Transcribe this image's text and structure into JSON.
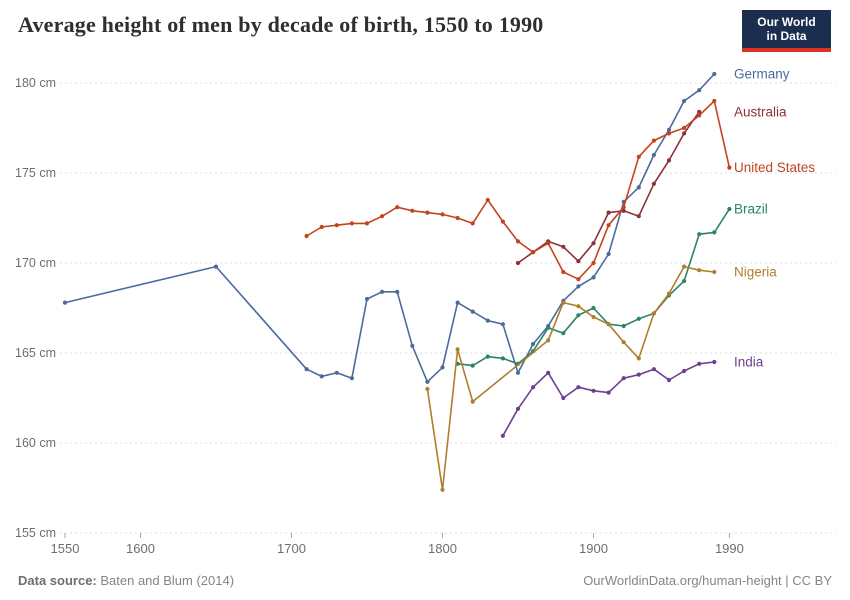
{
  "header": {
    "title": "Average height of men by decade of birth, 1550 to 1990"
  },
  "logo": {
    "line1": "Our World",
    "line2": "in Data",
    "bg_color": "#1b2e4f",
    "stripe_color": "#dc3122"
  },
  "footer": {
    "source_label": "Data source:",
    "source_text": " Baten and Blum (2014)",
    "link": "OurWorldinData.org/human-height | CC BY"
  },
  "chart_data": {
    "type": "line",
    "title": "Average height of men by decade of birth, 1550 to 1990",
    "xlabel": "",
    "ylabel": "cm",
    "x_ticks": [
      1550,
      1600,
      1700,
      1800,
      1900,
      1990
    ],
    "y_ticks": [
      155,
      160,
      165,
      170,
      175,
      180
    ],
    "y_tick_suffix": " cm",
    "xlim": [
      1550,
      1990
    ],
    "ylim": [
      155,
      181
    ],
    "grid": "dashed horizontal",
    "legend_position": "right-of-line-ends",
    "series": [
      {
        "name": "Germany",
        "color": "#4C6A9C",
        "points": [
          [
            1550,
            167.8
          ],
          [
            1650,
            169.8
          ],
          [
            1710,
            164.1
          ],
          [
            1720,
            163.7
          ],
          [
            1730,
            163.9
          ],
          [
            1740,
            163.6
          ],
          [
            1750,
            168.0
          ],
          [
            1760,
            168.4
          ],
          [
            1770,
            168.4
          ],
          [
            1780,
            165.4
          ],
          [
            1790,
            163.4
          ],
          [
            1800,
            164.2
          ],
          [
            1810,
            167.8
          ],
          [
            1820,
            167.3
          ],
          [
            1830,
            166.8
          ],
          [
            1840,
            166.6
          ],
          [
            1850,
            163.9
          ],
          [
            1860,
            165.5
          ],
          [
            1870,
            166.5
          ],
          [
            1880,
            167.9
          ],
          [
            1890,
            168.7
          ],
          [
            1900,
            169.2
          ],
          [
            1910,
            170.5
          ],
          [
            1920,
            173.4
          ],
          [
            1930,
            174.2
          ],
          [
            1940,
            176.0
          ],
          [
            1950,
            177.4
          ],
          [
            1960,
            179.0
          ],
          [
            1970,
            179.6
          ],
          [
            1980,
            180.5
          ]
        ]
      },
      {
        "name": "Australia",
        "color": "#8D3039",
        "points": [
          [
            1850,
            170.0
          ],
          [
            1860,
            170.6
          ],
          [
            1870,
            171.2
          ],
          [
            1880,
            170.9
          ],
          [
            1890,
            170.1
          ],
          [
            1900,
            171.1
          ],
          [
            1910,
            172.8
          ],
          [
            1920,
            172.9
          ],
          [
            1930,
            172.6
          ],
          [
            1940,
            174.4
          ],
          [
            1950,
            175.7
          ],
          [
            1960,
            177.2
          ],
          [
            1970,
            178.4
          ]
        ]
      },
      {
        "name": "United States",
        "color": "#C2441F",
        "points": [
          [
            1710,
            171.5
          ],
          [
            1720,
            172.0
          ],
          [
            1730,
            172.1
          ],
          [
            1740,
            172.2
          ],
          [
            1750,
            172.2
          ],
          [
            1760,
            172.6
          ],
          [
            1770,
            173.1
          ],
          [
            1780,
            172.9
          ],
          [
            1790,
            172.8
          ],
          [
            1800,
            172.7
          ],
          [
            1810,
            172.5
          ],
          [
            1820,
            172.2
          ],
          [
            1830,
            173.5
          ],
          [
            1840,
            172.3
          ],
          [
            1850,
            171.2
          ],
          [
            1860,
            170.6
          ],
          [
            1870,
            171.1
          ],
          [
            1880,
            169.5
          ],
          [
            1890,
            169.1
          ],
          [
            1900,
            170.0
          ],
          [
            1910,
            172.1
          ],
          [
            1920,
            173.1
          ],
          [
            1930,
            175.9
          ],
          [
            1940,
            176.8
          ],
          [
            1950,
            177.2
          ],
          [
            1960,
            177.5
          ],
          [
            1970,
            178.2
          ],
          [
            1980,
            179.0
          ],
          [
            1990,
            175.3
          ]
        ]
      },
      {
        "name": "Brazil",
        "color": "#2C8465",
        "points": [
          [
            1810,
            164.4
          ],
          [
            1820,
            164.3
          ],
          [
            1830,
            164.8
          ],
          [
            1840,
            164.7
          ],
          [
            1850,
            164.4
          ],
          [
            1860,
            165.1
          ],
          [
            1870,
            166.4
          ],
          [
            1880,
            166.1
          ],
          [
            1890,
            167.1
          ],
          [
            1900,
            167.5
          ],
          [
            1910,
            166.6
          ],
          [
            1920,
            166.5
          ],
          [
            1930,
            166.9
          ],
          [
            1940,
            167.2
          ],
          [
            1950,
            168.2
          ],
          [
            1960,
            169.0
          ],
          [
            1970,
            171.6
          ],
          [
            1980,
            171.7
          ],
          [
            1990,
            173.0
          ]
        ]
      },
      {
        "name": "Nigeria",
        "color": "#B07E2C",
        "points": [
          [
            1790,
            163.0
          ],
          [
            1800,
            157.4
          ],
          [
            1810,
            165.2
          ],
          [
            1820,
            162.3
          ],
          [
            1870,
            165.7
          ],
          [
            1880,
            167.8
          ],
          [
            1890,
            167.6
          ],
          [
            1900,
            167.0
          ],
          [
            1910,
            166.6
          ],
          [
            1920,
            165.6
          ],
          [
            1930,
            164.7
          ],
          [
            1940,
            167.2
          ],
          [
            1950,
            168.3
          ],
          [
            1960,
            169.8
          ],
          [
            1970,
            169.6
          ],
          [
            1980,
            169.5
          ]
        ]
      },
      {
        "name": "India",
        "color": "#6D3E91",
        "points": [
          [
            1840,
            160.4
          ],
          [
            1850,
            161.9
          ],
          [
            1860,
            163.1
          ],
          [
            1870,
            163.9
          ],
          [
            1880,
            162.5
          ],
          [
            1890,
            163.1
          ],
          [
            1900,
            162.9
          ],
          [
            1910,
            162.8
          ],
          [
            1920,
            163.6
          ],
          [
            1930,
            163.8
          ],
          [
            1940,
            164.1
          ],
          [
            1950,
            163.5
          ],
          [
            1960,
            164.0
          ],
          [
            1970,
            164.4
          ],
          [
            1980,
            164.5
          ]
        ]
      }
    ]
  }
}
